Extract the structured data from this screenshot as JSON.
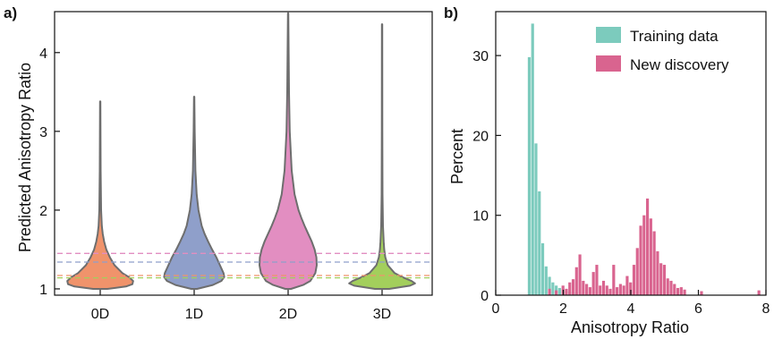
{
  "chart_data": [
    {
      "panel_label": "a)",
      "type": "violin",
      "ylabel": "Predicted Anisotropy Ratio",
      "ylim": [
        0.92,
        4.52
      ],
      "yticks": [
        1,
        2,
        3,
        4
      ],
      "categories": [
        "0D",
        "1D",
        "2D",
        "3D"
      ],
      "grid": false,
      "violins": [
        {
          "category": "0D",
          "color": "#f0936b",
          "min": 1.0,
          "max": 3.38,
          "median_line": 1.17,
          "profile": [
            [
              1.0,
              0.2
            ],
            [
              1.03,
              0.72
            ],
            [
              1.06,
              0.9
            ],
            [
              1.1,
              0.92
            ],
            [
              1.15,
              0.8
            ],
            [
              1.2,
              0.62
            ],
            [
              1.3,
              0.4
            ],
            [
              1.4,
              0.27
            ],
            [
              1.5,
              0.17
            ],
            [
              1.6,
              0.11
            ],
            [
              1.7,
              0.07
            ],
            [
              1.8,
              0.045
            ],
            [
              2.0,
              0.025
            ],
            [
              2.5,
              0.012
            ],
            [
              3.38,
              0.004
            ]
          ]
        },
        {
          "category": "1D",
          "color": "#8f9fca",
          "min": 1.0,
          "max": 3.44,
          "median_line": 1.34,
          "profile": [
            [
              1.0,
              0.08
            ],
            [
              1.05,
              0.52
            ],
            [
              1.1,
              0.76
            ],
            [
              1.15,
              0.84
            ],
            [
              1.2,
              0.82
            ],
            [
              1.3,
              0.72
            ],
            [
              1.4,
              0.62
            ],
            [
              1.5,
              0.5
            ],
            [
              1.6,
              0.39
            ],
            [
              1.7,
              0.29
            ],
            [
              1.8,
              0.21
            ],
            [
              2.0,
              0.12
            ],
            [
              2.2,
              0.07
            ],
            [
              2.5,
              0.035
            ],
            [
              3.0,
              0.015
            ],
            [
              3.44,
              0.005
            ]
          ]
        },
        {
          "category": "2D",
          "color": "#e28ec1",
          "min": 1.0,
          "max": 4.5,
          "median_line": 1.45,
          "profile": [
            [
              1.0,
              0.08
            ],
            [
              1.05,
              0.42
            ],
            [
              1.1,
              0.62
            ],
            [
              1.2,
              0.76
            ],
            [
              1.3,
              0.8
            ],
            [
              1.4,
              0.79
            ],
            [
              1.5,
              0.74
            ],
            [
              1.6,
              0.66
            ],
            [
              1.7,
              0.56
            ],
            [
              1.8,
              0.46
            ],
            [
              1.9,
              0.37
            ],
            [
              2.0,
              0.29
            ],
            [
              2.2,
              0.18
            ],
            [
              2.5,
              0.1
            ],
            [
              3.0,
              0.045
            ],
            [
              3.5,
              0.025
            ],
            [
              4.0,
              0.014
            ],
            [
              4.5,
              0.004
            ]
          ]
        },
        {
          "category": "3D",
          "color": "#a3cf5c",
          "min": 1.0,
          "max": 4.36,
          "median_line": 1.14,
          "profile": [
            [
              1.0,
              0.2
            ],
            [
              1.04,
              0.78
            ],
            [
              1.07,
              0.92
            ],
            [
              1.1,
              0.82
            ],
            [
              1.15,
              0.56
            ],
            [
              1.2,
              0.35
            ],
            [
              1.3,
              0.16
            ],
            [
              1.4,
              0.09
            ],
            [
              1.5,
              0.06
            ],
            [
              1.6,
              0.045
            ],
            [
              1.8,
              0.025
            ],
            [
              2.2,
              0.012
            ],
            [
              3.0,
              0.007
            ],
            [
              4.36,
              0.004
            ]
          ]
        }
      ]
    },
    {
      "panel_label": "b)",
      "type": "histogram",
      "xlabel": "Anisotropy Ratio",
      "ylabel": "Percent",
      "xlim": [
        0,
        8
      ],
      "ylim": [
        0,
        35.5
      ],
      "xticks": [
        0,
        2,
        4,
        6,
        8
      ],
      "yticks": [
        0,
        10,
        20,
        30
      ],
      "legend_position": "top-right",
      "grid": false,
      "series": [
        {
          "name": "Training data",
          "color": "#7ccbbd",
          "bins": [
            [
              0.95,
              1.05,
              29.8
            ],
            [
              1.05,
              1.15,
              34.0
            ],
            [
              1.15,
              1.25,
              19.0
            ],
            [
              1.25,
              1.35,
              13.0
            ],
            [
              1.35,
              1.45,
              6.5
            ],
            [
              1.45,
              1.55,
              3.6
            ],
            [
              1.55,
              1.65,
              2.3
            ],
            [
              1.65,
              1.75,
              1.6
            ],
            [
              1.75,
              1.85,
              1.2
            ],
            [
              1.85,
              1.95,
              0.9
            ],
            [
              1.95,
              2.05,
              0.7
            ],
            [
              2.05,
              2.15,
              0.5
            ],
            [
              2.15,
              2.25,
              0.4
            ],
            [
              2.25,
              2.35,
              0.3
            ],
            [
              2.35,
              2.45,
              0.3
            ],
            [
              2.45,
              2.55,
              0.2
            ],
            [
              2.55,
              2.65,
              0.2
            ],
            [
              2.65,
              2.75,
              0.15
            ],
            [
              2.75,
              2.85,
              0.15
            ],
            [
              2.85,
              2.95,
              0.1
            ],
            [
              2.95,
              3.05,
              0.1
            ],
            [
              3.05,
              3.15,
              0.1
            ],
            [
              3.15,
              3.25,
              0.1
            ]
          ]
        },
        {
          "name": "New discovery",
          "color": "#d9648f",
          "bins": [
            [
              1.55,
              1.65,
              0.8
            ],
            [
              1.75,
              1.85,
              0.6
            ],
            [
              1.95,
              2.05,
              1.2
            ],
            [
              2.05,
              2.15,
              0.8
            ],
            [
              2.15,
              2.25,
              1.6
            ],
            [
              2.25,
              2.35,
              2.0
            ],
            [
              2.35,
              2.45,
              3.5
            ],
            [
              2.45,
              2.55,
              5.1
            ],
            [
              2.55,
              2.65,
              1.8
            ],
            [
              2.65,
              2.75,
              1.4
            ],
            [
              2.75,
              2.85,
              1.0
            ],
            [
              2.85,
              2.95,
              2.9
            ],
            [
              2.95,
              3.05,
              3.8
            ],
            [
              3.05,
              3.15,
              1.2
            ],
            [
              3.15,
              3.25,
              1.8
            ],
            [
              3.25,
              3.35,
              1.2
            ],
            [
              3.35,
              3.45,
              0.8
            ],
            [
              3.45,
              3.55,
              3.8
            ],
            [
              3.55,
              3.65,
              1.0
            ],
            [
              3.65,
              3.75,
              1.4
            ],
            [
              3.75,
              3.85,
              1.2
            ],
            [
              3.85,
              3.95,
              2.4
            ],
            [
              3.95,
              4.05,
              1.6
            ],
            [
              4.05,
              4.15,
              3.8
            ],
            [
              4.15,
              4.25,
              5.9
            ],
            [
              4.25,
              4.35,
              8.7
            ],
            [
              4.35,
              4.45,
              10.0
            ],
            [
              4.45,
              4.55,
              12.1
            ],
            [
              4.55,
              4.65,
              9.6
            ],
            [
              4.65,
              4.75,
              8.0
            ],
            [
              4.75,
              4.85,
              5.5
            ],
            [
              4.85,
              4.95,
              4.0
            ],
            [
              4.95,
              5.05,
              3.8
            ],
            [
              5.05,
              5.15,
              2.1
            ],
            [
              5.15,
              5.25,
              1.8
            ],
            [
              5.25,
              5.35,
              1.4
            ],
            [
              5.35,
              5.45,
              0.9
            ],
            [
              5.45,
              5.55,
              1.0
            ],
            [
              5.55,
              5.65,
              0.7
            ],
            [
              6.05,
              6.15,
              0.5
            ],
            [
              7.75,
              7.85,
              0.6
            ]
          ]
        }
      ]
    }
  ]
}
